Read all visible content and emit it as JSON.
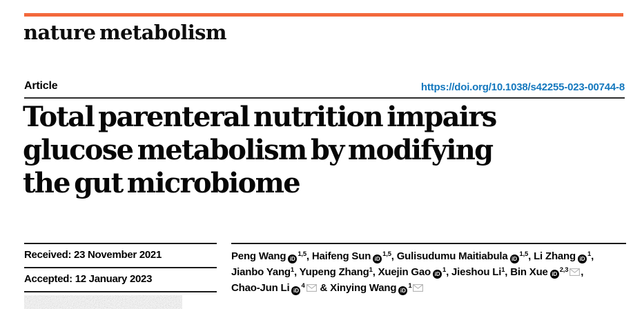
{
  "journal": {
    "name": "nature metabolism"
  },
  "header": {
    "kind_label": "Article",
    "doi": "https://doi.org/10.1038/s42255-023-00744-8"
  },
  "article": {
    "title": "Total parenteral nutrition impairs glucose metabolism by modifying the gut microbiome",
    "title_lines": [
      "Total parenteral nutrition impairs",
      "glucose metabolism by modifying",
      "the gut microbiome"
    ]
  },
  "dates": {
    "received": {
      "label": "Received:",
      "value": "23 November 2021"
    },
    "accepted": {
      "label": "Accepted:",
      "value": "12 January 2023"
    }
  },
  "authors": {
    "orcid_icon_label": "iD",
    "lines": [
      [
        {
          "name": "Peng Wang",
          "orcid": true,
          "sup": "1,5",
          "sep": ", "
        },
        {
          "name": "Haifeng Sun",
          "orcid": true,
          "sup": "1,5",
          "sep": ", "
        },
        {
          "name": "Gulisudumu Maitiabula",
          "orcid": true,
          "sup": "1,5",
          "sep": ", "
        },
        {
          "name": "Li Zhang",
          "orcid": true,
          "sup": "1",
          "sep": ","
        }
      ],
      [
        {
          "name": "Jianbo Yang",
          "sup": "1",
          "sep": ", "
        },
        {
          "name": "Yupeng Zhang",
          "sup": "1",
          "sep": ", "
        },
        {
          "name": "Xuejin Gao",
          "orcid": true,
          "sup": "1",
          "sep": ", "
        },
        {
          "name": "Jieshou Li",
          "sup": "1",
          "sep": ", "
        },
        {
          "name": "Bin Xue",
          "orcid": true,
          "sup": "2,3",
          "email": true,
          "sep": ","
        }
      ],
      [
        {
          "name": "Chao-Jun Li",
          "orcid": true,
          "sup": "4",
          "email": true,
          "sep": " & "
        },
        {
          "name": "Xinying Wang",
          "orcid": true,
          "sup": "1",
          "email": true
        }
      ]
    ]
  },
  "colors": {
    "brand_rule": "#f3683c",
    "doi_link": "#1478be",
    "title_text": "#060606",
    "rule_dark": "#1a1a1a",
    "email_icon": "#b3b3b3"
  }
}
